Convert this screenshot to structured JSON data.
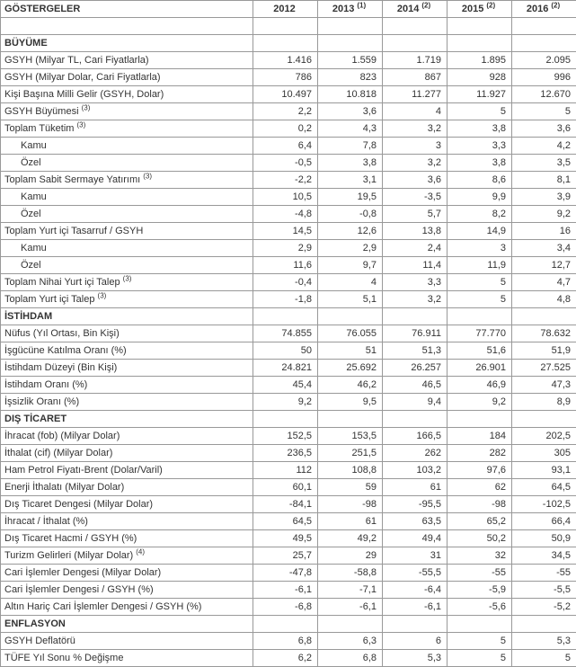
{
  "header": {
    "label": "GÖSTERGELER",
    "years": [
      {
        "year": "2012",
        "note": ""
      },
      {
        "year": "2013",
        "note": "(1)"
      },
      {
        "year": "2014",
        "note": "(2)"
      },
      {
        "year": "2015",
        "note": "(2)"
      },
      {
        "year": "2016",
        "note": "(2)"
      }
    ]
  },
  "rows": [
    {
      "type": "blank"
    },
    {
      "type": "section",
      "label": "BÜYÜME"
    },
    {
      "type": "data",
      "label": "GSYH (Milyar TL, Cari Fiyatlarla)",
      "vals": [
        "1.416",
        "1.559",
        "1.719",
        "1.895",
        "2.095"
      ]
    },
    {
      "type": "data",
      "label": "GSYH (Milyar Dolar, Cari Fiyatlarla)",
      "vals": [
        "786",
        "823",
        "867",
        "928",
        "996"
      ]
    },
    {
      "type": "data",
      "label": "Kişi Başına Milli Gelir (GSYH, Dolar)",
      "vals": [
        "10.497",
        "10.818",
        "11.277",
        "11.927",
        "12.670"
      ]
    },
    {
      "type": "data",
      "label": "GSYH Büyümesi",
      "note": "(3)",
      "vals": [
        "2,2",
        "3,6",
        "4",
        "5",
        "5"
      ]
    },
    {
      "type": "data",
      "label": "Toplam Tüketim",
      "note": "(3)",
      "vals": [
        "0,2",
        "4,3",
        "3,2",
        "3,8",
        "3,6"
      ]
    },
    {
      "type": "data",
      "label": "Kamu",
      "indent": 1,
      "vals": [
        "6,4",
        "7,8",
        "3",
        "3,3",
        "4,2"
      ]
    },
    {
      "type": "data",
      "label": "Özel",
      "indent": 1,
      "vals": [
        "-0,5",
        "3,8",
        "3,2",
        "3,8",
        "3,5"
      ]
    },
    {
      "type": "data",
      "label": "Toplam Sabit Sermaye Yatırımı",
      "note": "(3)",
      "vals": [
        "-2,2",
        "3,1",
        "3,6",
        "8,6",
        "8,1"
      ]
    },
    {
      "type": "data",
      "label": "Kamu",
      "indent": 1,
      "vals": [
        "10,5",
        "19,5",
        "-3,5",
        "9,9",
        "3,9"
      ]
    },
    {
      "type": "data",
      "label": "Özel",
      "indent": 1,
      "vals": [
        "-4,8",
        "-0,8",
        "5,7",
        "8,2",
        "9,2"
      ]
    },
    {
      "type": "data",
      "label": "Toplam Yurt içi Tasarruf / GSYH",
      "vals": [
        "14,5",
        "12,6",
        "13,8",
        "14,9",
        "16"
      ]
    },
    {
      "type": "data",
      "label": "Kamu",
      "indent": 1,
      "vals": [
        "2,9",
        "2,9",
        "2,4",
        "3",
        "3,4"
      ]
    },
    {
      "type": "data",
      "label": "Özel",
      "indent": 1,
      "vals": [
        "11,6",
        "9,7",
        "11,4",
        "11,9",
        "12,7"
      ]
    },
    {
      "type": "data",
      "label": "Toplam Nihai Yurt içi Talep",
      "note": "(3)",
      "vals": [
        "-0,4",
        "4",
        "3,3",
        "5",
        "4,7"
      ]
    },
    {
      "type": "data",
      "label": "Toplam Yurt içi Talep",
      "note": "(3)",
      "vals": [
        "-1,8",
        "5,1",
        "3,2",
        "5",
        "4,8"
      ]
    },
    {
      "type": "section",
      "label": "İSTİHDAM"
    },
    {
      "type": "data",
      "label": "Nüfus (Yıl Ortası, Bin Kişi)",
      "vals": [
        "74.855",
        "76.055",
        "76.911",
        "77.770",
        "78.632"
      ]
    },
    {
      "type": "data",
      "label": "İşgücüne Katılma Oranı (%)",
      "vals": [
        "50",
        "51",
        "51,3",
        "51,6",
        "51,9"
      ]
    },
    {
      "type": "data",
      "label": "İstihdam Düzeyi (Bin Kişi)",
      "vals": [
        "24.821",
        "25.692",
        "26.257",
        "26.901",
        "27.525"
      ]
    },
    {
      "type": "data",
      "label": "İstihdam Oranı (%)",
      "vals": [
        "45,4",
        "46,2",
        "46,5",
        "46,9",
        "47,3"
      ]
    },
    {
      "type": "data",
      "label": "İşsizlik Oranı (%)",
      "vals": [
        "9,2",
        "9,5",
        "9,4",
        "9,2",
        "8,9"
      ]
    },
    {
      "type": "section",
      "label": "DIŞ TİCARET"
    },
    {
      "type": "data",
      "label": "İhracat (fob) (Milyar Dolar)",
      "vals": [
        "152,5",
        "153,5",
        "166,5",
        "184",
        "202,5"
      ]
    },
    {
      "type": "data",
      "label": "İthalat (cif) (Milyar Dolar)",
      "vals": [
        "236,5",
        "251,5",
        "262",
        "282",
        "305"
      ]
    },
    {
      "type": "data",
      "label": "Ham Petrol Fiyatı-Brent (Dolar/Varil)",
      "vals": [
        "112",
        "108,8",
        "103,2",
        "97,6",
        "93,1"
      ]
    },
    {
      "type": "data",
      "label": "Enerji İthalatı (Milyar Dolar)",
      "vals": [
        "60,1",
        "59",
        "61",
        "62",
        "64,5"
      ]
    },
    {
      "type": "data",
      "label": "Dış Ticaret Dengesi (Milyar Dolar)",
      "vals": [
        "-84,1",
        "-98",
        "-95,5",
        "-98",
        "-102,5"
      ]
    },
    {
      "type": "data",
      "label": "İhracat / İthalat (%)",
      "vals": [
        "64,5",
        "61",
        "63,5",
        "65,2",
        "66,4"
      ]
    },
    {
      "type": "data",
      "label": "Dış Ticaret Hacmi / GSYH (%)",
      "vals": [
        "49,5",
        "49,2",
        "49,4",
        "50,2",
        "50,9"
      ]
    },
    {
      "type": "data",
      "label": "Turizm Gelirleri (Milyar Dolar)",
      "note": "(4)",
      "vals": [
        "25,7",
        "29",
        "31",
        "32",
        "34,5"
      ]
    },
    {
      "type": "data",
      "label": "Cari İşlemler Dengesi (Milyar Dolar)",
      "vals": [
        "-47,8",
        "-58,8",
        "-55,5",
        "-55",
        "-55"
      ]
    },
    {
      "type": "data",
      "label": "Cari İşlemler Dengesi / GSYH (%)",
      "vals": [
        "-6,1",
        "-7,1",
        "-6,4",
        "-5,9",
        "-5,5"
      ]
    },
    {
      "type": "data",
      "label": "Altın Hariç Cari İşlemler Dengesi / GSYH (%)",
      "vals": [
        "-6,8",
        "-6,1",
        "-6,1",
        "-5,6",
        "-5,2"
      ]
    },
    {
      "type": "section",
      "label": "ENFLASYON"
    },
    {
      "type": "data",
      "label": "GSYH Deflatörü",
      "vals": [
        "6,8",
        "6,3",
        "6",
        "5",
        "5,3"
      ]
    },
    {
      "type": "data",
      "label": "TÜFE Yıl Sonu % Değişme",
      "vals": [
        "6,2",
        "6,8",
        "5,3",
        "5",
        "5"
      ]
    }
  ]
}
